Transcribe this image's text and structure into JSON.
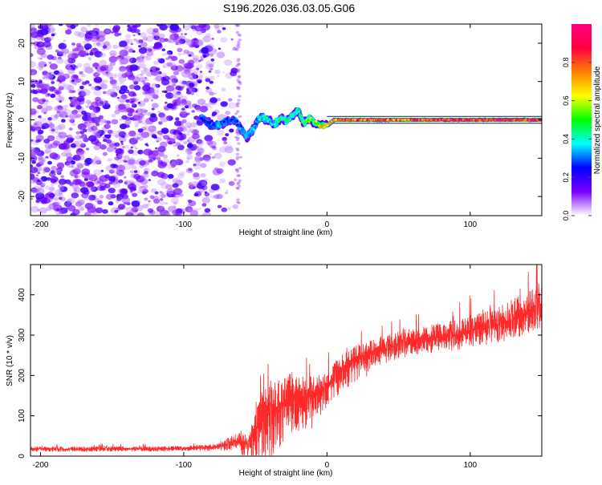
{
  "title": "S196.2026.036.03.05.G06",
  "chart_data": [
    {
      "type": "heatmap",
      "title": "S196.2026.036.03.05.G06",
      "xlabel": "Height of straight line (km)",
      "ylabel": "Frequency (Hz)",
      "xlim": [
        -207,
        150
      ],
      "ylim": [
        -25,
        25
      ],
      "xticks": [
        -200,
        -100,
        0,
        100
      ],
      "yticks": [
        -20,
        -10,
        0,
        10,
        20
      ],
      "colorbar": {
        "label": "Normalized spectral amplitude",
        "range": [
          0,
          1
        ],
        "ticks": [
          0.0,
          0.2,
          0.4,
          0.6,
          0.8
        ],
        "tick_labels": [
          "0.0",
          "0.2",
          "0.4",
          "0.6",
          "0.8"
        ],
        "colors": [
          "#ffffff",
          "#7a00ff",
          "#0000ff",
          "#00ffff",
          "#00ff00",
          "#ffff00",
          "#ff8000",
          "#ff0040",
          "#ff0080"
        ]
      },
      "signal_track": {
        "x": [
          -88,
          -82,
          -76,
          -70,
          -64,
          -60,
          -56,
          -52,
          -48,
          -44,
          -40,
          -36,
          -32,
          -28,
          -24,
          -20,
          -16,
          -12,
          -8,
          -4,
          0,
          5,
          10,
          20,
          30,
          40,
          50,
          60,
          70,
          80,
          90,
          100,
          110,
          120,
          130,
          140,
          150
        ],
        "freq": [
          0.5,
          -1.0,
          -1.5,
          -0.5,
          0.0,
          -2.5,
          -4.5,
          -3.0,
          0.2,
          0.5,
          -0.5,
          -1.0,
          0.5,
          0.0,
          1.0,
          2.5,
          -1.0,
          0.5,
          -1.0,
          -1.5,
          -1.5,
          0.0,
          0.0,
          0.0,
          0.0,
          0.0,
          0.0,
          0.0,
          0.0,
          0.0,
          0.0,
          0.0,
          0.0,
          0.0,
          0.0,
          0.0,
          0.0
        ],
        "amplitude": [
          0.25,
          0.3,
          0.35,
          0.3,
          0.3,
          0.35,
          0.4,
          0.35,
          0.4,
          0.45,
          0.4,
          0.45,
          0.5,
          0.45,
          0.5,
          0.5,
          0.55,
          0.6,
          0.6,
          0.7,
          0.8,
          0.85,
          0.9,
          0.9,
          0.95,
          0.95,
          0.9,
          0.95,
          0.95,
          1.0,
          0.95,
          1.0,
          0.95,
          1.0,
          1.0,
          1.0,
          1.0
        ]
      },
      "noise_region": {
        "x_from": -207,
        "x_to": -60,
        "amplitude_range": [
          0.0,
          0.2
        ]
      }
    },
    {
      "type": "line",
      "xlabel": "Height of straight line (km)",
      "ylabel": "SNR (10 * v/v)",
      "xlim": [
        -207,
        150
      ],
      "ylim": [
        0,
        475
      ],
      "xticks": [
        -200,
        -100,
        0,
        100
      ],
      "yticks": [
        0,
        100,
        200,
        300,
        400
      ],
      "color": "#ff2a2a",
      "series": [
        {
          "name": "SNR",
          "x": [
            -207,
            -180,
            -150,
            -120,
            -100,
            -90,
            -80,
            -70,
            -65,
            -60,
            -55,
            -50,
            -45,
            -40,
            -35,
            -30,
            -25,
            -20,
            -15,
            -10,
            -5,
            0,
            10,
            20,
            30,
            40,
            50,
            60,
            70,
            80,
            90,
            100,
            110,
            120,
            130,
            140,
            150
          ],
          "value": [
            18,
            17,
            18,
            18,
            19,
            20,
            22,
            28,
            35,
            38,
            30,
            60,
            95,
            110,
            120,
            135,
            150,
            150,
            145,
            150,
            160,
            175,
            215,
            240,
            255,
            265,
            275,
            285,
            290,
            295,
            300,
            310,
            320,
            325,
            340,
            355,
            375
          ],
          "spread": [
            6,
            6,
            6,
            6,
            6,
            7,
            8,
            15,
            20,
            25,
            20,
            50,
            70,
            80,
            70,
            60,
            60,
            55,
            55,
            50,
            45,
            40,
            35,
            35,
            35,
            35,
            35,
            35,
            35,
            35,
            40,
            40,
            45,
            45,
            50,
            50,
            55
          ]
        }
      ]
    }
  ]
}
